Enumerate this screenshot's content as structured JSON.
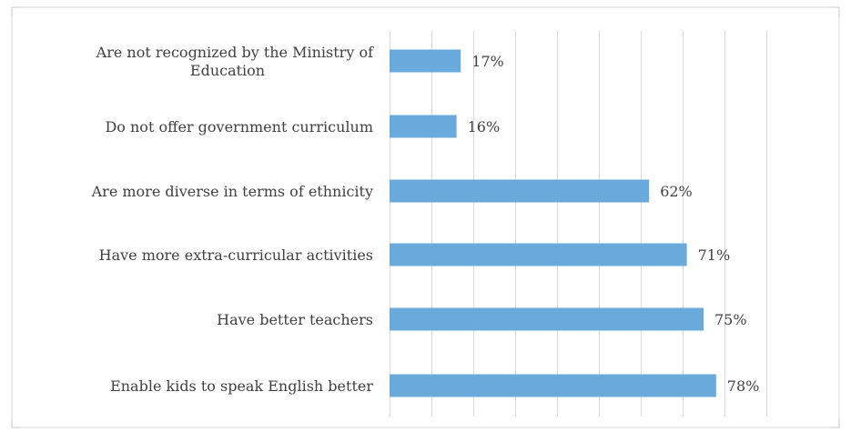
{
  "chart_data": {
    "type": "bar",
    "orientation": "horizontal",
    "categories": [
      "Are not recognized by the Ministry of Education",
      "Do not offer government curriculum",
      "Are more diverse in terms of ethnicity",
      "Have more extra-curricular activities",
      "Have better teachers",
      "Enable kids to speak English better"
    ],
    "category_lines": [
      [
        "Are not recognized by the Ministry of",
        "Education"
      ],
      [
        "Do not offer government curriculum"
      ],
      [
        "Are more diverse in terms of ethnicity"
      ],
      [
        "Have more extra-curricular activities"
      ],
      [
        "Have better teachers"
      ],
      [
        "Enable kids to speak English better"
      ]
    ],
    "values": [
      17,
      16,
      62,
      71,
      75,
      78
    ],
    "data_labels": [
      "17%",
      "16%",
      "62%",
      "71%",
      "75%",
      "78%"
    ],
    "xlim": [
      0,
      90
    ],
    "grid": true,
    "legend": "none",
    "title": "",
    "xlabel": "",
    "ylabel": ""
  },
  "colors": {
    "bar": "#6aa9dc",
    "grid": "#d9d9d9",
    "frame": "#d9d9d9",
    "text": "#404040"
  }
}
